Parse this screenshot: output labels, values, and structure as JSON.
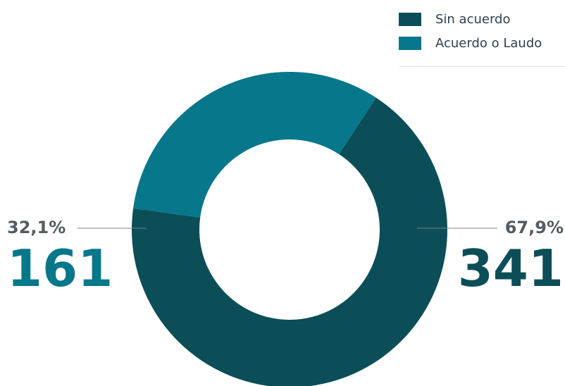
{
  "chart_data": {
    "type": "pie",
    "legend_position": "top-right",
    "series": [
      {
        "name": "Sin acuerdo",
        "value": 341,
        "percent_label": "67,9%",
        "color": "#0c4e58"
      },
      {
        "name": "Acuerdo o Laudo",
        "value": 161,
        "percent_label": "32,1%",
        "color": "#07778b"
      }
    ]
  }
}
